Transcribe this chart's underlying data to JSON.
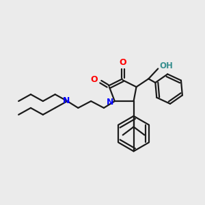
{
  "background_color": "#ebebeb",
  "atom_colors": {
    "O": "#ff0000",
    "N": "#0000ff",
    "H_label": "#3a9090",
    "C": "#1a1a1a"
  },
  "bond_color": "#1a1a1a",
  "bond_width": 1.6,
  "figsize": [
    3.0,
    3.0
  ],
  "dpi": 100
}
